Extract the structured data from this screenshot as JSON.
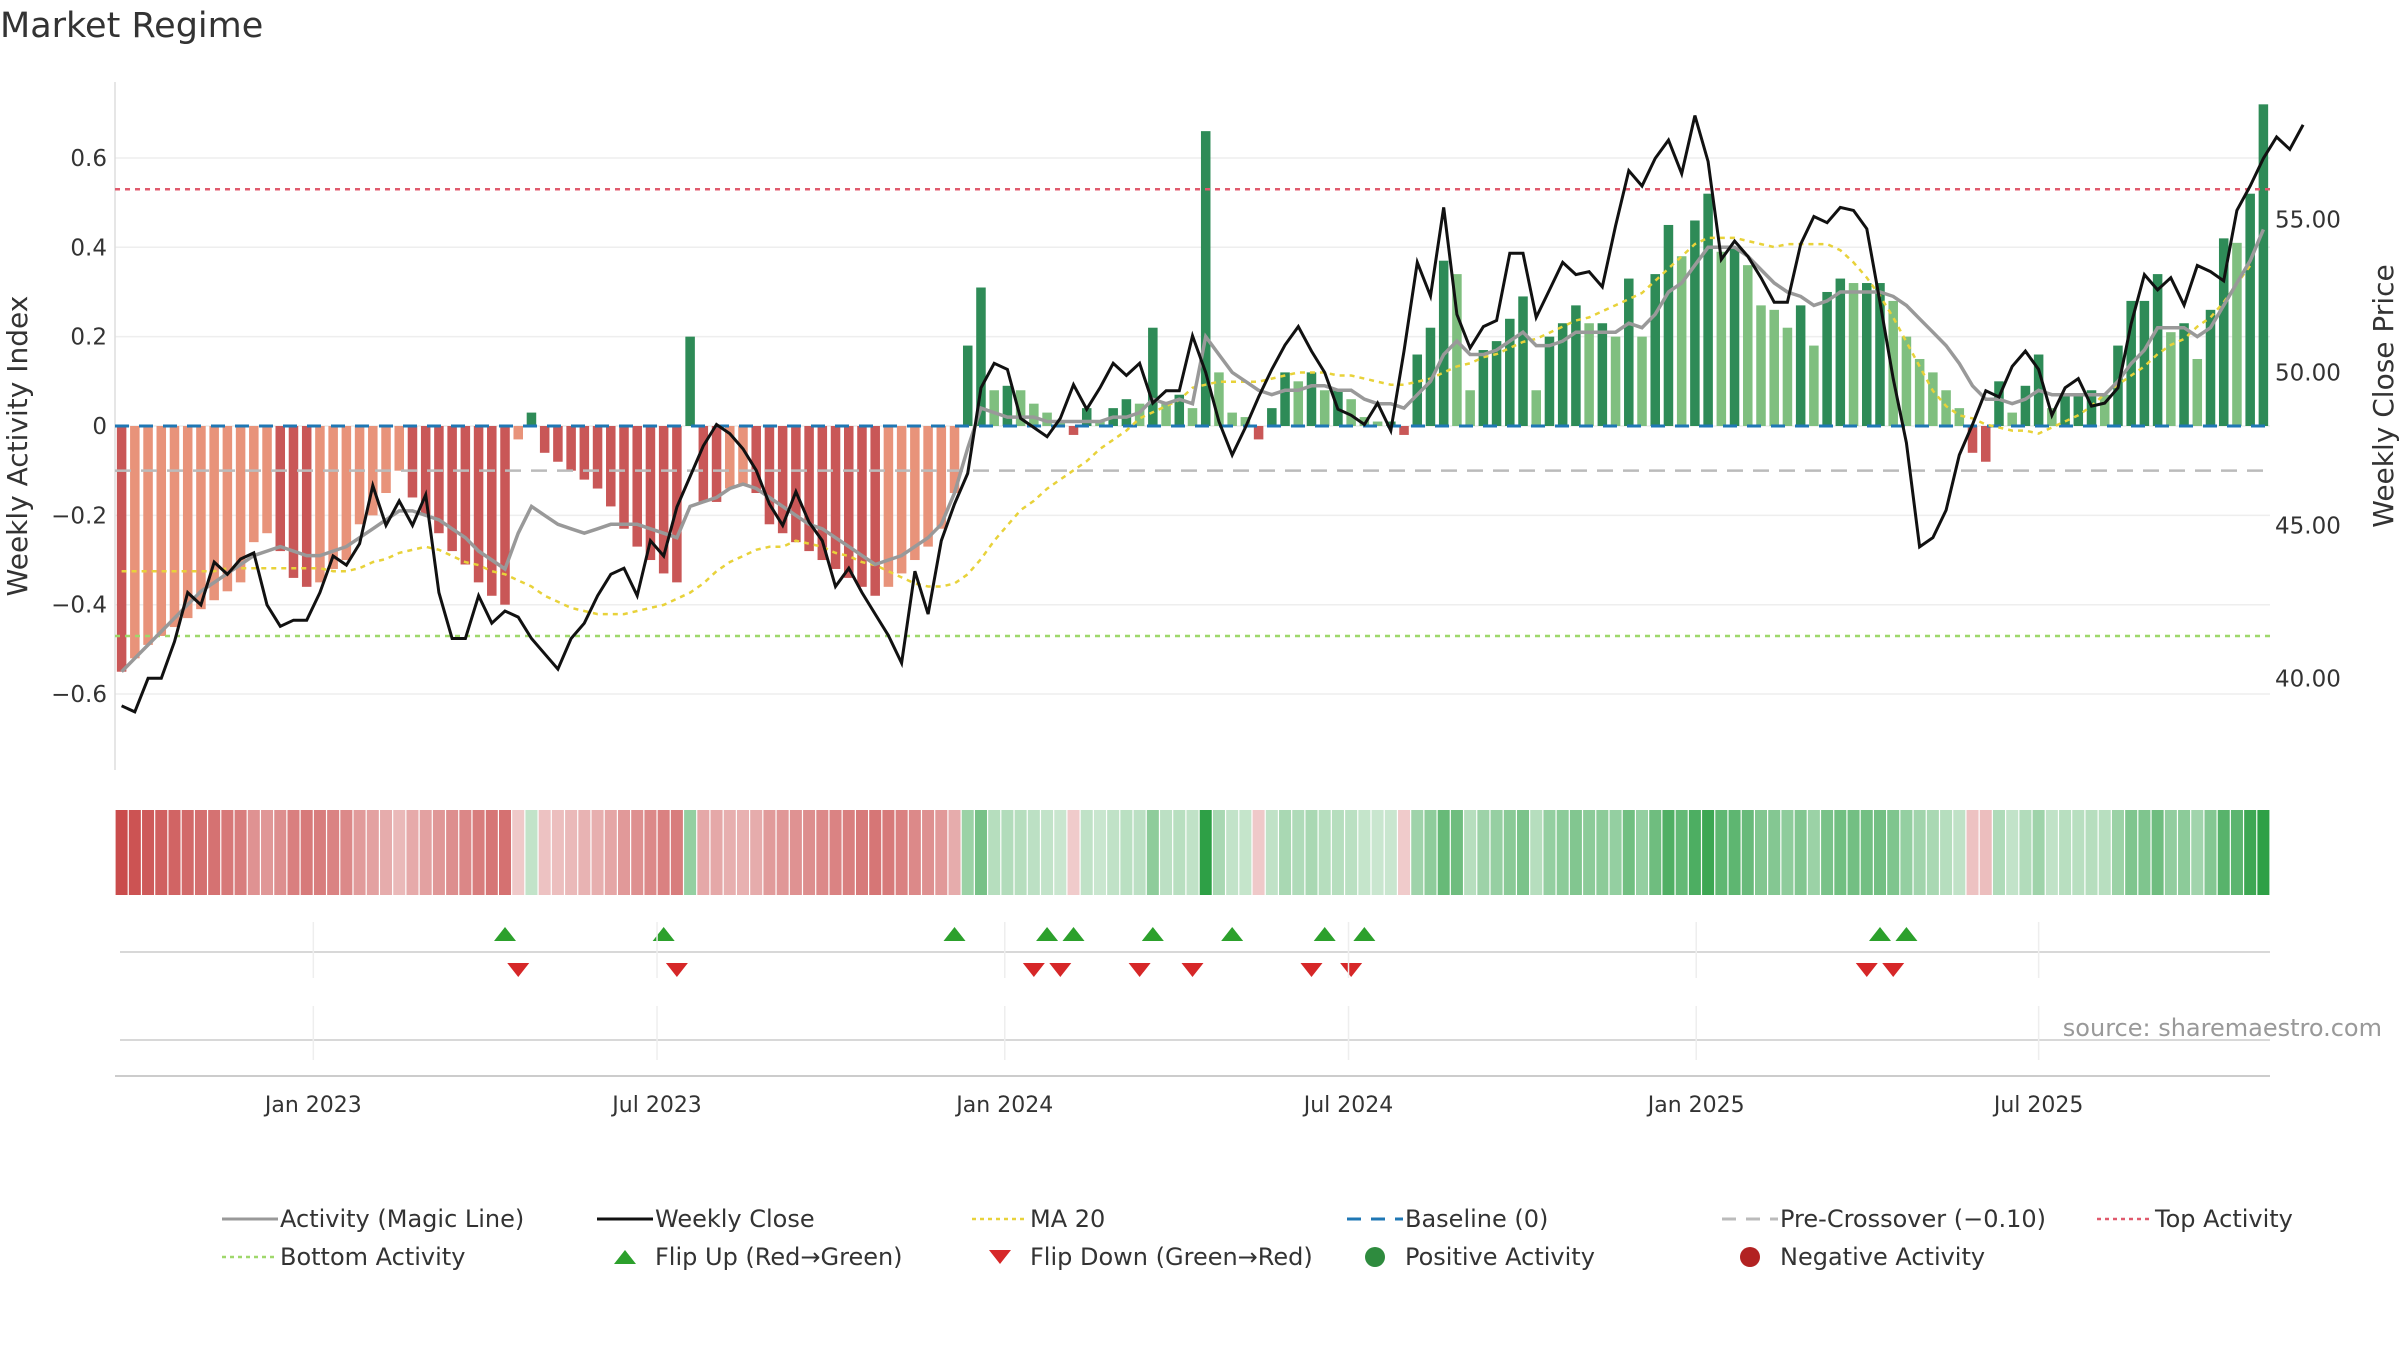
{
  "title": "Market Regime",
  "source": "source: sharemaestro.com",
  "chart_data": {
    "type": "bar",
    "title": "Market Regime",
    "ylabel_left": "Weekly Activity Index",
    "ylabel_right": "Weekly Close Price",
    "ylim_left": [
      -0.77,
      0.77
    ],
    "ylim_right": [
      37.0,
      59.5
    ],
    "left_ticks": [
      0.6,
      0.4,
      0.2,
      0,
      -0.2,
      -0.4,
      -0.6
    ],
    "left_tick_labels": [
      "0.6",
      "0.4",
      "0.2",
      "0",
      "−0.2",
      "−0.4",
      "−0.6"
    ],
    "right_ticks": [
      55,
      50,
      45,
      40
    ],
    "right_tick_labels": [
      "55.00",
      "50.00",
      "45.00",
      "40.00"
    ],
    "x_ticks": [
      {
        "label": "Jan 2023",
        "week": 15
      },
      {
        "label": "Jul 2023",
        "week": 41
      },
      {
        "label": "Jan 2024",
        "week": 67.3
      },
      {
        "label": "Jul 2024",
        "week": 93.3
      },
      {
        "label": "Jan 2025",
        "week": 119.6
      },
      {
        "label": "Jul 2025",
        "week": 145.5
      }
    ],
    "grid": true,
    "top_activity": 0.53,
    "bottom_activity": -0.47,
    "pre_crossover": -0.1,
    "baseline": 0,
    "activity": [
      -0.55,
      -0.52,
      -0.49,
      -0.47,
      -0.45,
      -0.43,
      -0.41,
      -0.39,
      -0.37,
      -0.35,
      -0.26,
      -0.24,
      -0.28,
      -0.34,
      -0.36,
      -0.35,
      -0.32,
      -0.3,
      -0.22,
      -0.2,
      -0.15,
      -0.1,
      -0.16,
      -0.2,
      -0.24,
      -0.28,
      -0.31,
      -0.35,
      -0.38,
      -0.4,
      -0.03,
      0.03,
      -0.06,
      -0.08,
      -0.1,
      -0.12,
      -0.14,
      -0.18,
      -0.23,
      -0.27,
      -0.3,
      -0.33,
      -0.35,
      0.2,
      -0.17,
      -0.17,
      -0.14,
      -0.13,
      -0.15,
      -0.22,
      -0.24,
      -0.26,
      -0.28,
      -0.3,
      -0.32,
      -0.34,
      -0.36,
      -0.38,
      -0.36,
      -0.33,
      -0.3,
      -0.27,
      -0.23,
      -0.15,
      0.18,
      0.31,
      0.08,
      0.09,
      0.08,
      0.05,
      0.03,
      0.01,
      -0.02,
      0.04,
      0.01,
      0.04,
      0.06,
      0.05,
      0.22,
      0.05,
      0.07,
      0.04,
      0.66,
      0.12,
      0.03,
      0.02,
      -0.03,
      0.04,
      0.12,
      0.1,
      0.12,
      0.08,
      0.08,
      0.06,
      0.02,
      0.01,
      0.01,
      -0.02,
      0.16,
      0.22,
      0.37,
      0.34,
      0.08,
      0.17,
      0.19,
      0.24,
      0.29,
      0.08,
      0.2,
      0.23,
      0.27,
      0.23,
      0.23,
      0.2,
      0.33,
      0.2,
      0.34,
      0.45,
      0.38,
      0.46,
      0.52,
      0.39,
      0.4,
      0.36,
      0.27,
      0.26,
      0.22,
      0.27,
      0.18,
      0.3,
      0.33,
      0.32,
      0.32,
      0.32,
      0.28,
      0.2,
      0.15,
      0.12,
      0.08,
      0.04,
      -0.06,
      -0.08,
      0.1,
      0.03,
      0.09,
      0.16,
      0.04,
      0.07,
      0.07,
      0.08,
      0.07,
      0.18,
      0.28,
      0.28,
      0.34,
      0.21,
      0.23,
      0.15,
      0.26,
      0.42,
      0.41,
      0.52,
      0.72
    ],
    "magic_line": [
      -0.55,
      -0.52,
      -0.49,
      -0.46,
      -0.43,
      -0.4,
      -0.37,
      -0.35,
      -0.33,
      -0.31,
      -0.29,
      -0.28,
      -0.27,
      -0.28,
      -0.29,
      -0.29,
      -0.28,
      -0.27,
      -0.25,
      -0.23,
      -0.21,
      -0.19,
      -0.19,
      -0.2,
      -0.21,
      -0.23,
      -0.25,
      -0.28,
      -0.3,
      -0.32,
      -0.24,
      -0.18,
      -0.2,
      -0.22,
      -0.23,
      -0.24,
      -0.23,
      -0.22,
      -0.22,
      -0.22,
      -0.23,
      -0.24,
      -0.25,
      -0.18,
      -0.17,
      -0.16,
      -0.14,
      -0.13,
      -0.14,
      -0.16,
      -0.18,
      -0.2,
      -0.22,
      -0.23,
      -0.25,
      -0.27,
      -0.29,
      -0.31,
      -0.3,
      -0.29,
      -0.27,
      -0.25,
      -0.22,
      -0.15,
      -0.05,
      0.04,
      0.03,
      0.02,
      0.02,
      0.02,
      0.01,
      0.01,
      0.01,
      0.01,
      0.01,
      0.02,
      0.02,
      0.03,
      0.06,
      0.05,
      0.06,
      0.05,
      0.2,
      0.16,
      0.12,
      0.1,
      0.08,
      0.07,
      0.08,
      0.08,
      0.09,
      0.09,
      0.08,
      0.08,
      0.06,
      0.05,
      0.05,
      0.04,
      0.07,
      0.1,
      0.16,
      0.19,
      0.16,
      0.16,
      0.17,
      0.19,
      0.21,
      0.18,
      0.18,
      0.19,
      0.21,
      0.21,
      0.21,
      0.21,
      0.23,
      0.22,
      0.25,
      0.3,
      0.32,
      0.36,
      0.4,
      0.4,
      0.4,
      0.38,
      0.35,
      0.32,
      0.3,
      0.29,
      0.27,
      0.28,
      0.3,
      0.3,
      0.3,
      0.3,
      0.29,
      0.27,
      0.24,
      0.21,
      0.18,
      0.14,
      0.09,
      0.06,
      0.06,
      0.05,
      0.06,
      0.08,
      0.07,
      0.07,
      0.07,
      0.07,
      0.07,
      0.1,
      0.14,
      0.17,
      0.22,
      0.22,
      0.22,
      0.2,
      0.22,
      0.27,
      0.32,
      0.37,
      0.44
    ],
    "weekly_close": [
      39.1,
      38.9,
      40.0,
      40.0,
      41.2,
      42.8,
      42.4,
      43.8,
      43.4,
      43.9,
      44.1,
      42.4,
      41.7,
      41.9,
      41.9,
      42.8,
      44.0,
      43.7,
      44.4,
      46.3,
      45.0,
      45.8,
      45.0,
      46.0,
      42.8,
      41.3,
      41.3,
      42.7,
      41.8,
      42.2,
      42.0,
      41.3,
      40.8,
      40.3,
      41.3,
      41.8,
      42.7,
      43.4,
      43.6,
      42.7,
      44.5,
      44.0,
      45.6,
      46.6,
      47.6,
      48.3,
      48.0,
      47.5,
      46.8,
      45.7,
      45.0,
      46.1,
      45.1,
      44.5,
      43.0,
      43.6,
      42.8,
      42.1,
      41.4,
      40.5,
      43.5,
      42.1,
      44.5,
      45.7,
      46.7,
      49.5,
      50.3,
      50.1,
      48.5,
      48.2,
      47.9,
      48.5,
      49.6,
      48.8,
      49.5,
      50.3,
      49.9,
      50.3,
      49.0,
      49.4,
      49.4,
      51.2,
      50.0,
      48.4,
      47.3,
      48.2,
      49.2,
      50.1,
      50.9,
      51.5,
      50.7,
      50.0,
      48.8,
      48.6,
      48.3,
      49.0,
      48.1,
      50.7,
      53.6,
      52.5,
      55.4,
      51.9,
      50.8,
      51.5,
      51.7,
      53.9,
      53.9,
      51.8,
      52.7,
      53.6,
      53.2,
      53.3,
      52.8,
      54.8,
      56.6,
      56.1,
      57.0,
      57.6,
      56.5,
      58.4,
      56.9,
      53.7,
      54.3,
      53.8,
      53.1,
      52.3,
      52.3,
      54.2,
      55.1,
      54.9,
      55.4,
      55.3,
      54.7,
      52.3,
      49.8,
      47.7,
      44.3,
      44.6,
      45.5,
      47.3,
      48.3,
      49.4,
      49.2,
      50.2,
      50.7,
      50.1,
      48.6,
      49.5,
      49.8,
      48.9,
      49.0,
      49.5,
      51.6,
      53.2,
      52.7,
      53.1,
      52.2,
      53.5,
      53.3,
      53.0,
      55.3,
      56.1,
      57.0,
      57.7,
      57.3,
      58.1
    ],
    "ma20": [
      43.5,
      43.5,
      43.5,
      43.5,
      43.5,
      43.5,
      43.5,
      43.5,
      43.6,
      43.6,
      43.6,
      43.6,
      43.6,
      43.6,
      43.6,
      43.6,
      43.5,
      43.5,
      43.6,
      43.8,
      43.9,
      44.1,
      44.2,
      44.3,
      44.2,
      44.0,
      43.8,
      43.7,
      43.5,
      43.4,
      43.2,
      43.0,
      42.7,
      42.5,
      42.3,
      42.2,
      42.1,
      42.1,
      42.1,
      42.2,
      42.3,
      42.4,
      42.6,
      42.8,
      43.1,
      43.5,
      43.8,
      44.0,
      44.2,
      44.3,
      44.3,
      44.5,
      44.4,
      44.3,
      44.1,
      44.0,
      43.8,
      43.7,
      43.5,
      43.3,
      43.1,
      43.0,
      43.0,
      43.1,
      43.4,
      43.9,
      44.5,
      45.0,
      45.5,
      45.8,
      46.2,
      46.5,
      46.8,
      47.1,
      47.5,
      47.8,
      48.1,
      48.5,
      48.7,
      48.9,
      49.1,
      49.5,
      49.6,
      49.7,
      49.7,
      49.7,
      49.7,
      49.8,
      49.9,
      50.0,
      50.0,
      50.0,
      49.9,
      49.9,
      49.8,
      49.7,
      49.6,
      49.6,
      49.7,
      49.8,
      50.0,
      50.2,
      50.3,
      50.5,
      50.6,
      50.8,
      51.0,
      51.1,
      51.3,
      51.5,
      51.7,
      51.8,
      52.0,
      52.2,
      52.4,
      52.6,
      53.0,
      53.4,
      53.8,
      54.2,
      54.4,
      54.4,
      54.4,
      54.3,
      54.2,
      54.1,
      54.2,
      54.2,
      54.2,
      54.2,
      54.0,
      53.6,
      53.1,
      52.5,
      51.8,
      51.0,
      50.2,
      49.4,
      48.9,
      48.6,
      48.5,
      48.3,
      48.2,
      48.1,
      48.1,
      48.0,
      48.2,
      48.4,
      48.6,
      48.9,
      49.3,
      49.6,
      49.9,
      50.2,
      50.6,
      50.9,
      51.1,
      51.5,
      51.8,
      52.3,
      52.9,
      53.5
    ],
    "flip_up_weeks": [
      29.5,
      41.5,
      63.5,
      70.5,
      72.5,
      78.5,
      84.5,
      91.5,
      94.5,
      133.5,
      135.5
    ],
    "flip_down_weeks": [
      30.5,
      42.5,
      69.5,
      71.5,
      77.5,
      81.5,
      90.5,
      93.5,
      132.5,
      134.5
    ],
    "legend": [
      {
        "label": "Activity (Magic Line)",
        "symbol": "line",
        "color": "#999999"
      },
      {
        "label": "Weekly Close",
        "symbol": "line",
        "color": "#111111"
      },
      {
        "label": "MA 20",
        "symbol": "dotted",
        "color": "#e8d23a"
      },
      {
        "label": "Baseline (0)",
        "symbol": "dashed",
        "color": "#1f77b4"
      },
      {
        "label": "Pre-Crossover (−0.10)",
        "symbol": "dashed",
        "color": "#bbbbbb"
      },
      {
        "label": "Top Activity",
        "symbol": "dotted",
        "color": "#e05a6d"
      },
      {
        "label": "Bottom Activity",
        "symbol": "dotted",
        "color": "#9fd86b"
      },
      {
        "label": "Flip Up (Red→Green)",
        "symbol": "triangle-up",
        "color": "#2ca02c"
      },
      {
        "label": "Flip Down (Green→Red)",
        "symbol": "triangle-down",
        "color": "#d62728"
      },
      {
        "label": "Positive Activity",
        "symbol": "circle",
        "color": "#2e8b3e"
      },
      {
        "label": "Negative Activity",
        "symbol": "circle",
        "color": "#b22222"
      }
    ]
  },
  "colors": {
    "pos_strong": "#2e8b57",
    "pos_light": "#7fbf7f",
    "neg_strong": "#c95757",
    "neg_light": "#e8937a",
    "magic": "#999999",
    "close": "#111111",
    "ma": "#e8d23a",
    "baseline": "#1f77b4",
    "pre": "#bbbbbb",
    "top": "#e05a6d",
    "bottom": "#9fd86b",
    "up": "#2ca02c",
    "down": "#d62728"
  }
}
